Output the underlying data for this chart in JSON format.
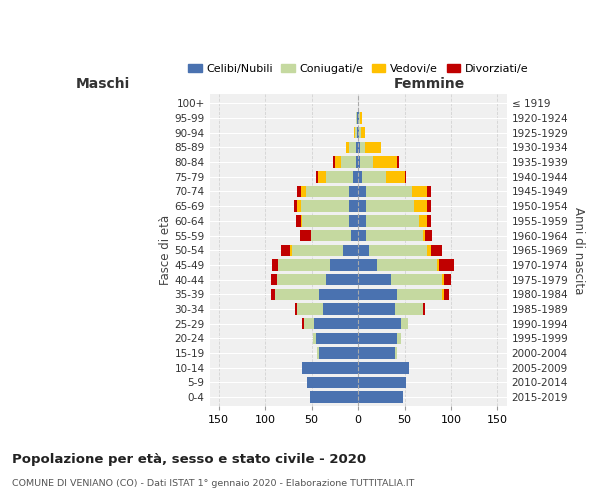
{
  "age_groups_bottom_to_top": [
    "0-4",
    "5-9",
    "10-14",
    "15-19",
    "20-24",
    "25-29",
    "30-34",
    "35-39",
    "40-44",
    "45-49",
    "50-54",
    "55-59",
    "60-64",
    "65-69",
    "70-74",
    "75-79",
    "80-84",
    "85-89",
    "90-94",
    "95-99",
    "100+"
  ],
  "birth_years_bottom_to_top": [
    "2015-2019",
    "2010-2014",
    "2005-2009",
    "2000-2004",
    "1995-1999",
    "1990-1994",
    "1985-1989",
    "1980-1984",
    "1975-1979",
    "1970-1974",
    "1965-1969",
    "1960-1964",
    "1955-1959",
    "1950-1954",
    "1945-1949",
    "1940-1944",
    "1935-1939",
    "1930-1934",
    "1925-1929",
    "1920-1924",
    "≤ 1919"
  ],
  "maschi_celibi": [
    52,
    55,
    60,
    42,
    45,
    48,
    38,
    42,
    35,
    30,
    16,
    8,
    10,
    10,
    10,
    5,
    2,
    2,
    1,
    1,
    0
  ],
  "maschi_coniugati": [
    0,
    0,
    0,
    2,
    4,
    10,
    28,
    48,
    52,
    56,
    55,
    43,
    50,
    52,
    46,
    30,
    16,
    8,
    2,
    1,
    0
  ],
  "maschi_vedovi": [
    0,
    0,
    0,
    0,
    0,
    0,
    0,
    0,
    0,
    0,
    2,
    0,
    2,
    4,
    5,
    8,
    7,
    3,
    1,
    0,
    0
  ],
  "maschi_divorziati": [
    0,
    0,
    0,
    0,
    0,
    2,
    2,
    4,
    7,
    7,
    10,
    12,
    5,
    3,
    5,
    2,
    2,
    0,
    0,
    0,
    0
  ],
  "femmine_nubili": [
    48,
    52,
    55,
    40,
    42,
    46,
    40,
    42,
    35,
    20,
    12,
    8,
    8,
    8,
    8,
    4,
    2,
    2,
    1,
    1,
    0
  ],
  "femmine_coniugate": [
    0,
    0,
    0,
    2,
    4,
    8,
    30,
    48,
    55,
    65,
    62,
    62,
    58,
    52,
    50,
    26,
    14,
    5,
    2,
    1,
    0
  ],
  "femmine_vedove": [
    0,
    0,
    0,
    0,
    0,
    0,
    0,
    2,
    2,
    2,
    4,
    2,
    8,
    14,
    16,
    20,
    26,
    18,
    4,
    2,
    0
  ],
  "femmine_divorziate": [
    0,
    0,
    0,
    0,
    0,
    0,
    2,
    6,
    8,
    16,
    12,
    8,
    5,
    5,
    5,
    2,
    2,
    0,
    0,
    0,
    0
  ],
  "color_celibi": "#4a72b0",
  "color_coniugati": "#c5d9a0",
  "color_vedovi": "#ffc000",
  "color_divorziati": "#c00000",
  "title": "Popolazione per età, sesso e stato civile - 2020",
  "subtitle": "COMUNE DI VENIANO (CO) - Dati ISTAT 1° gennaio 2020 - Elaborazione TUTTITALIA.IT",
  "ylabel_left": "Fasce di età",
  "ylabel_right": "Anni di nascita",
  "xlabel_left": "Maschi",
  "xlabel_right": "Femmine",
  "xlim": 160,
  "background_color": "#ffffff",
  "plot_bg": "#f0f0f0",
  "grid_color": "#cccccc"
}
